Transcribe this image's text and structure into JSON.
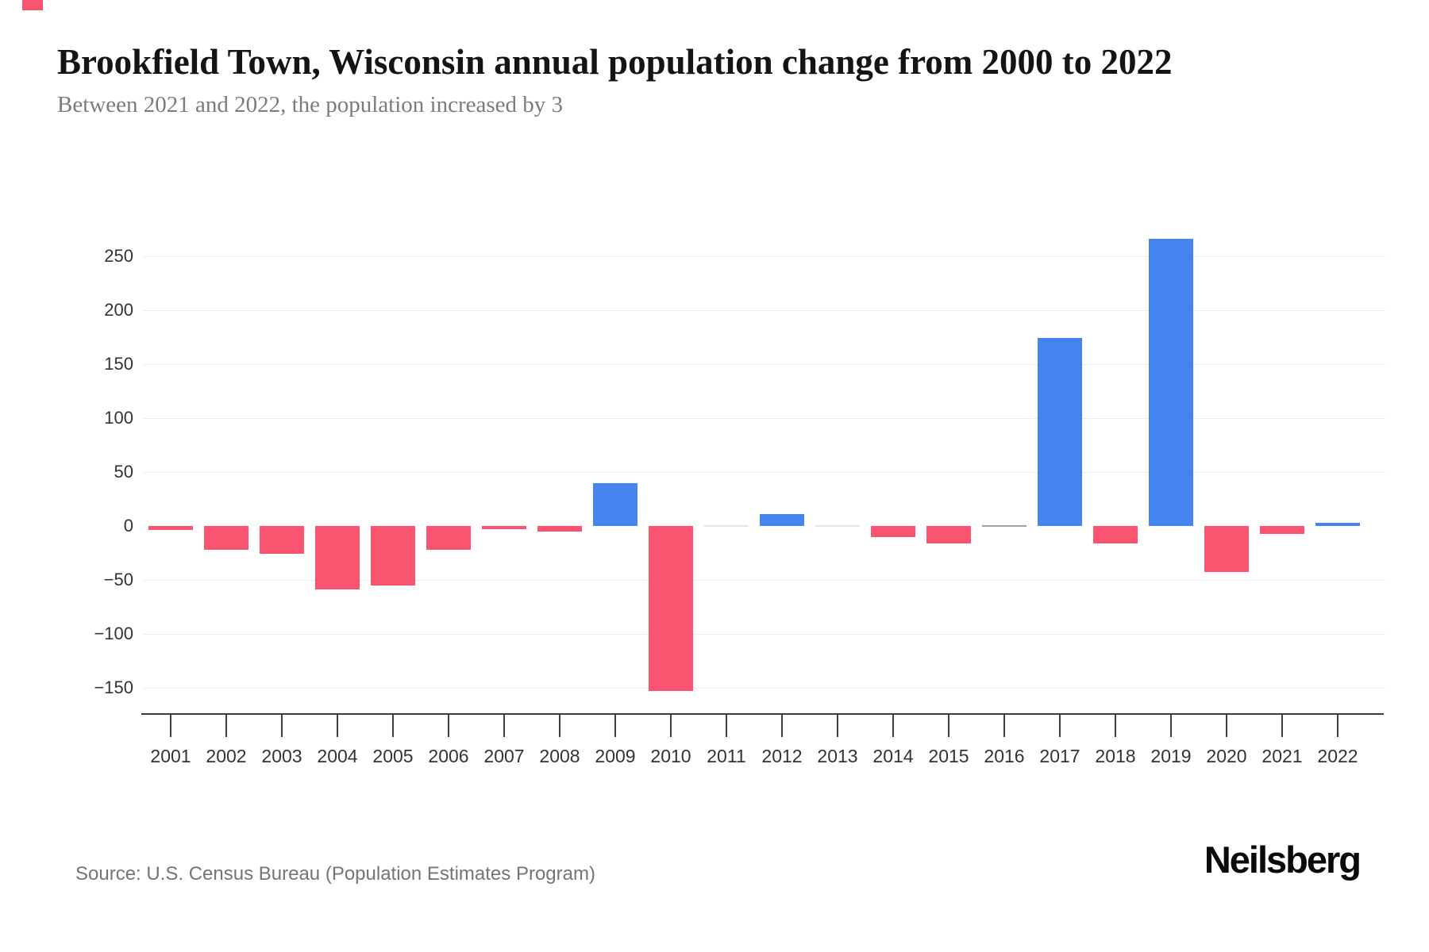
{
  "header": {
    "title": "Brookfield Town, Wisconsin annual population change from 2000 to 2022",
    "subtitle": "Between 2021 and 2022, the population increased by 3"
  },
  "chart_data": {
    "type": "bar",
    "title": "Brookfield Town, Wisconsin annual population change from 2000 to 2022",
    "subtitle": "Between 2021 and 2022, the population increased by 3",
    "xlabel": "",
    "ylabel": "",
    "categories": [
      "2001",
      "2002",
      "2003",
      "2004",
      "2005",
      "2006",
      "2007",
      "2008",
      "2009",
      "2010",
      "2011",
      "2012",
      "2013",
      "2014",
      "2015",
      "2016",
      "2017",
      "2018",
      "2019",
      "2020",
      "2021",
      "2022"
    ],
    "values": [
      -4,
      -22,
      -26,
      -59,
      -55,
      -22,
      -3,
      -5,
      40,
      -153,
      0,
      11,
      0,
      -10,
      -16,
      0,
      174,
      -16,
      266,
      -43,
      -7,
      3
    ],
    "y_ticks": [
      250,
      200,
      150,
      100,
      50,
      0,
      -50,
      -100,
      -150
    ],
    "ylim": [
      -175,
      285
    ],
    "grid": true,
    "legend": false,
    "colors": {
      "positive": "#4484ee",
      "negative": "#fa5470",
      "zero_light": "#e3e5e8",
      "zero_dark": "#9aa1a8"
    },
    "zero_style": {
      "light_years": [
        "2011",
        "2013"
      ],
      "dark_years": [
        "2016"
      ]
    }
  },
  "footer": {
    "source": "Source: U.S. Census Bureau (Population Estimates Program)",
    "brand": "Neilsberg"
  }
}
